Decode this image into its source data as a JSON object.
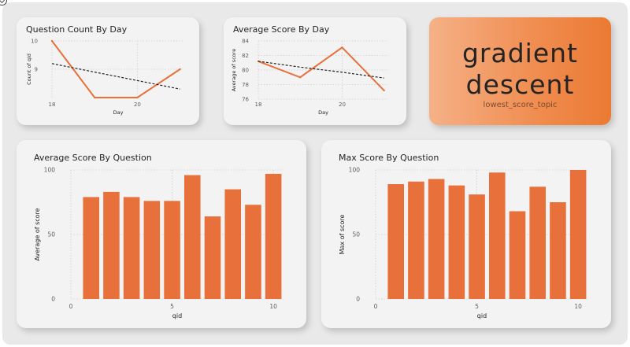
{
  "kpi": {
    "value_line1": "gradient",
    "value_line2": "descent",
    "label": "lowest_score_topic",
    "gradient_from": "#f5b187",
    "gradient_to": "#ea7a33"
  },
  "colors": {
    "series": "#e8703a",
    "trend": "#252423",
    "grid": "#cfcfcf"
  },
  "chart_data": [
    {
      "id": "question_count_by_day",
      "type": "line",
      "title": "Question Count By Day",
      "xlabel": "Day",
      "ylabel": "Count of qid",
      "x": [
        18,
        19,
        20,
        21
      ],
      "y": [
        10,
        8,
        8,
        9
      ],
      "trendline": true,
      "trend_y": [
        9.2,
        8.9,
        8.6,
        8.3
      ],
      "xlim": [
        18,
        21.1
      ],
      "ylim": [
        8,
        10
      ],
      "xticks": [
        18,
        20
      ],
      "yticks": [
        9,
        10
      ]
    },
    {
      "id": "average_score_by_day",
      "type": "line",
      "title": "Average Score By Day",
      "xlabel": "Day",
      "ylabel": "Average of score",
      "x": [
        18,
        19,
        20,
        21
      ],
      "y": [
        81.2,
        79.0,
        83.1,
        77.2
      ],
      "trendline": true,
      "trend_y": [
        81.2,
        80.4,
        79.7,
        78.9
      ],
      "xlim": [
        18,
        21.1
      ],
      "ylim": [
        76,
        84
      ],
      "xticks": [
        18,
        20
      ],
      "yticks": [
        76,
        78,
        80,
        82,
        84
      ]
    },
    {
      "id": "average_score_by_question",
      "type": "bar",
      "title": "Average Score By Question",
      "xlabel": "qid",
      "ylabel": "Average of score",
      "categories": [
        1,
        2,
        3,
        4,
        5,
        6,
        7,
        8,
        9,
        10
      ],
      "values": [
        79,
        83,
        79,
        76,
        76,
        96,
        64,
        85,
        73,
        97
      ],
      "xlim": [
        0,
        10.5
      ],
      "ylim": [
        0,
        100
      ],
      "xticks": [
        0,
        5,
        10
      ],
      "yticks": [
        0,
        50,
        100
      ]
    },
    {
      "id": "max_score_by_question",
      "type": "bar",
      "title": "Max Score By Question",
      "xlabel": "qid",
      "ylabel": "Max of score",
      "categories": [
        1,
        2,
        3,
        4,
        5,
        6,
        7,
        8,
        9,
        10
      ],
      "values": [
        89,
        91,
        93,
        88,
        81,
        98,
        68,
        87,
        75,
        100
      ],
      "xlim": [
        0,
        10.5
      ],
      "ylim": [
        0,
        100
      ],
      "xticks": [
        0,
        5,
        10
      ],
      "yticks": [
        0,
        50,
        100
      ]
    }
  ]
}
